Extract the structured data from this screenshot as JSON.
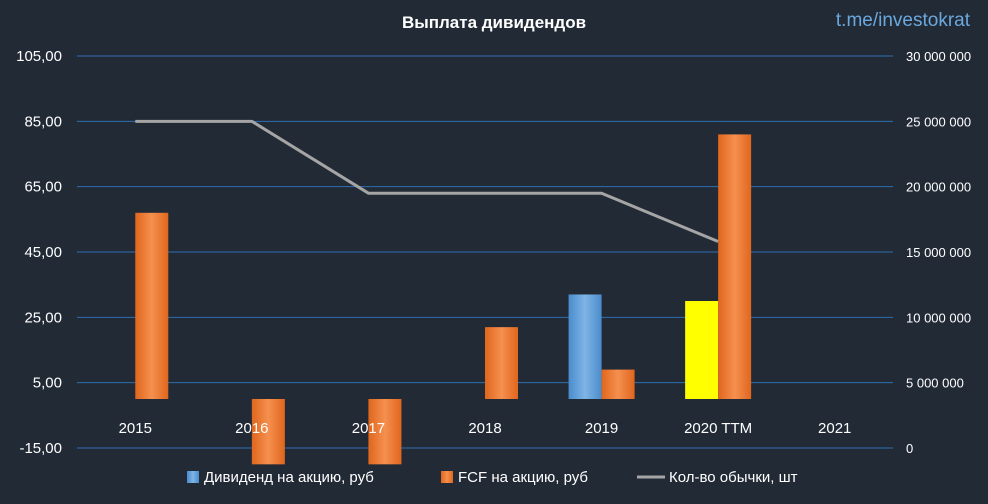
{
  "watermark": "t.me/investokrat",
  "chart_data": {
    "type": "bar",
    "title": "Выплата дивидендов",
    "categories": [
      "2015",
      "2016",
      "2017",
      "2018",
      "2019",
      "2020 TTM",
      "2021"
    ],
    "y_left": {
      "ylim": [
        -15,
        105
      ],
      "ticks": [
        -15,
        5,
        25,
        45,
        65,
        85,
        105
      ],
      "tick_labels": [
        "-15,00",
        "5,00",
        "25,00",
        "45,00",
        "65,00",
        "85,00",
        "105,00"
      ]
    },
    "y_right": {
      "ylim": [
        0,
        30000000
      ],
      "ticks": [
        0,
        5000000,
        10000000,
        15000000,
        20000000,
        25000000,
        30000000
      ],
      "tick_labels": [
        "0",
        "5 000 000",
        "10 000 000",
        "15 000 000",
        "20 000 000",
        "25 000 000",
        "30 000 000"
      ]
    },
    "series": [
      {
        "name": "Дивиденд на акцию, руб",
        "type": "bar",
        "axis": "left",
        "color": "#5b9bd5",
        "values": [
          null,
          null,
          null,
          null,
          32.0,
          30.0,
          null
        ],
        "point_colors": [
          null,
          null,
          null,
          null,
          "#5b9bd5",
          "#ffff00",
          null
        ]
      },
      {
        "name": "FCF на акцию, руб",
        "type": "bar",
        "axis": "left",
        "color": "#ed7d31",
        "values": [
          57.0,
          -20.0,
          -20.0,
          22.0,
          9.0,
          81.0,
          null
        ]
      },
      {
        "name": "Кол-во обычки, шт",
        "type": "line",
        "axis": "right",
        "color": "#a5a5a5",
        "values": [
          25000000,
          25000000,
          19500000,
          19500000,
          19500000,
          15800000,
          null
        ]
      }
    ],
    "grid": true,
    "legend_position": "bottom"
  }
}
